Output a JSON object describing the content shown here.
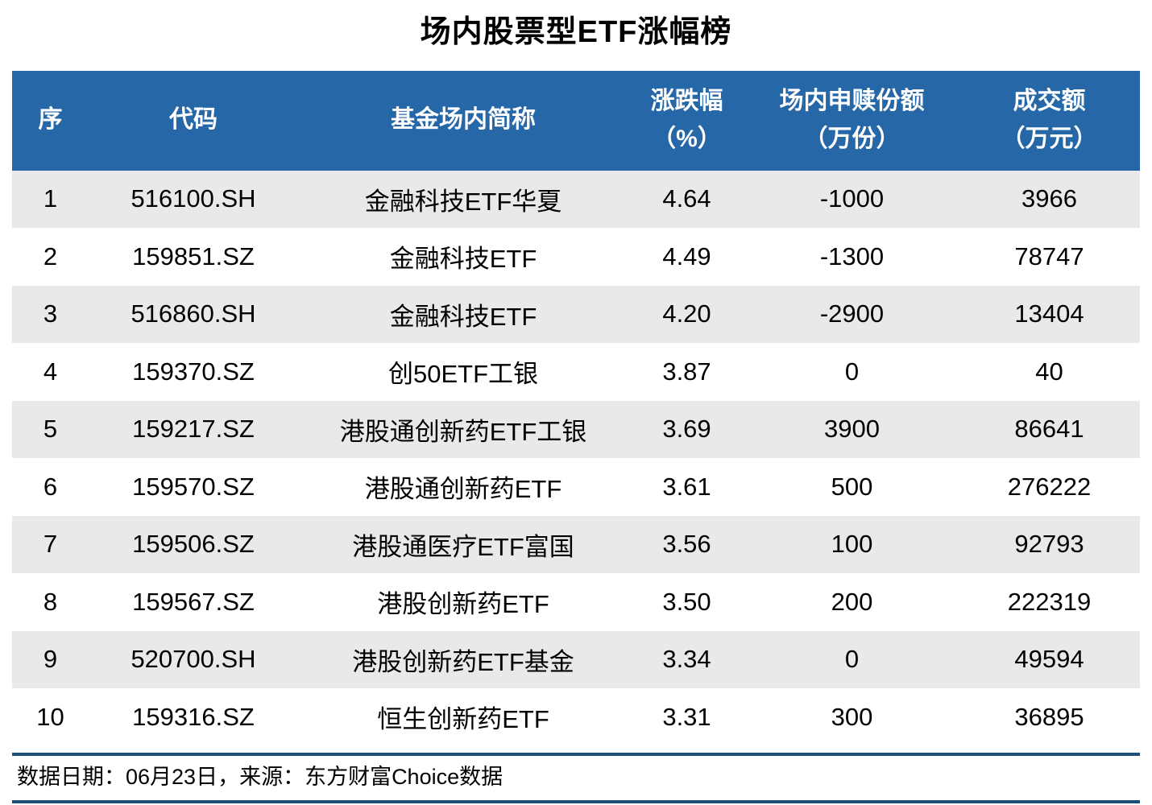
{
  "title": "场内股票型ETF涨幅榜",
  "colors": {
    "header_bg": "#2667A8",
    "row_alt_bg": "#E9E9E9",
    "row_bg": "#FFFFFF",
    "rule": "#1F4E79",
    "header_text": "#FFFFFF",
    "body_text": "#000000"
  },
  "header": {
    "cols": [
      {
        "l1": "序",
        "l2": ""
      },
      {
        "l1": "代码",
        "l2": ""
      },
      {
        "l1": "基金场内简称",
        "l2": ""
      },
      {
        "l1": "涨跌幅",
        "l2": "（%）"
      },
      {
        "l1": "场内申赎份额",
        "l2": "（万份）"
      },
      {
        "l1": "成交额",
        "l2": "（万元）"
      }
    ]
  },
  "chart_data": {
    "type": "table",
    "title": "场内股票型ETF涨幅榜",
    "columns": [
      "序",
      "代码",
      "基金场内简称",
      "涨跌幅（%）",
      "场内申赎份额（万份）",
      "成交额（万元）"
    ],
    "rows": [
      [
        "1",
        "516100.SH",
        "金融科技ETF华夏",
        "4.64",
        "-1000",
        "3966"
      ],
      [
        "2",
        "159851.SZ",
        "金融科技ETF",
        "4.49",
        "-1300",
        "78747"
      ],
      [
        "3",
        "516860.SH",
        "金融科技ETF",
        "4.20",
        "-2900",
        "13404"
      ],
      [
        "4",
        "159370.SZ",
        "创50ETF工银",
        "3.87",
        "0",
        "40"
      ],
      [
        "5",
        "159217.SZ",
        "港股通创新药ETF工银",
        "3.69",
        "3900",
        "86641"
      ],
      [
        "6",
        "159570.SZ",
        "港股通创新药ETF",
        "3.61",
        "500",
        "276222"
      ],
      [
        "7",
        "159506.SZ",
        "港股通医疗ETF富国",
        "3.56",
        "100",
        "92793"
      ],
      [
        "8",
        "159567.SZ",
        "港股创新药ETF",
        "3.50",
        "200",
        "222319"
      ],
      [
        "9",
        "520700.SH",
        "港股创新药ETF基金",
        "3.34",
        "0",
        "49594"
      ],
      [
        "10",
        "159316.SZ",
        "恒生创新药ETF",
        "3.31",
        "300",
        "36895"
      ]
    ]
  },
  "footer": {
    "text": "数据日期：06月23日，来源：东方财富Choice数据"
  }
}
